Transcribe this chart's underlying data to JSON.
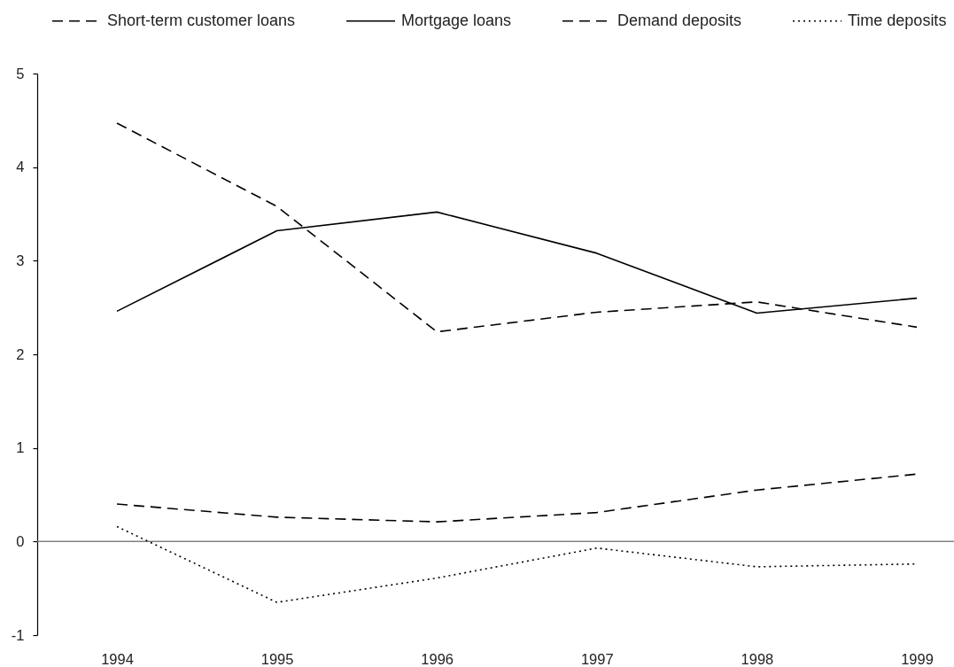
{
  "chart_data": {
    "type": "line",
    "categories": [
      "1994",
      "1995",
      "1996",
      "1997",
      "1998",
      "1999"
    ],
    "ylim": [
      -1,
      5
    ],
    "yticks": [
      -1,
      0,
      1,
      2,
      3,
      4,
      5
    ],
    "legend": "top",
    "series": [
      {
        "name": "Short-term customer loans",
        "color": "#000000",
        "line_style": "dashed",
        "values": [
          4.47,
          3.58,
          2.24,
          2.45,
          2.56,
          2.29
        ]
      },
      {
        "name": "Mortgage loans",
        "color": "#000000",
        "line_style": "solid",
        "values": [
          2.46,
          3.32,
          3.52,
          3.08,
          2.44,
          2.6
        ]
      },
      {
        "name": "Demand deposits",
        "color": "#000000",
        "line_style": "dashed",
        "values": [
          0.4,
          0.26,
          0.21,
          0.31,
          0.55,
          0.72
        ]
      },
      {
        "name": "Time deposits",
        "color": "#000000",
        "line_style": "dotted",
        "values": [
          0.16,
          -0.65,
          -0.39,
          -0.07,
          -0.27,
          -0.24
        ]
      }
    ],
    "ref_lines": [
      {
        "axis": "y",
        "value": 0,
        "color": "#808080"
      }
    ]
  }
}
